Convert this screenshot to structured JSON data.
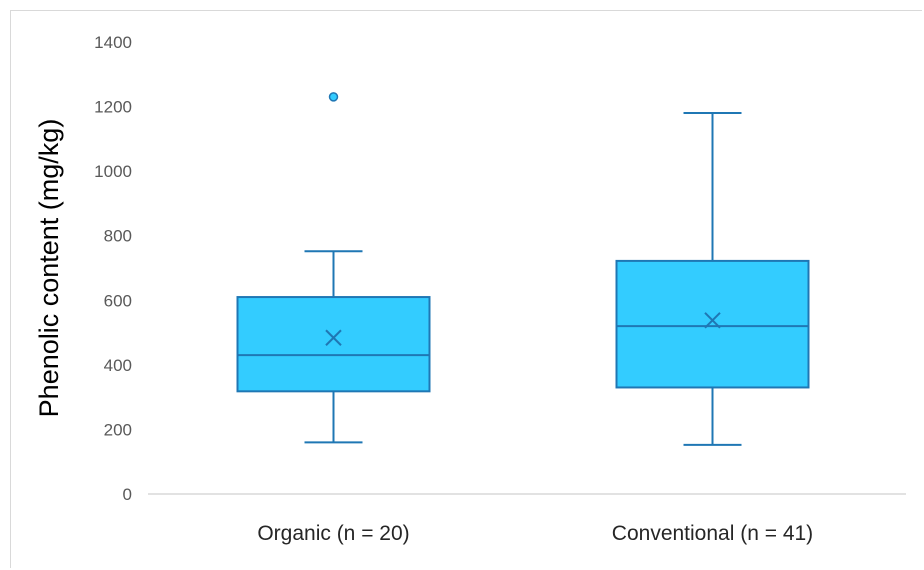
{
  "chart_data": {
    "type": "box",
    "title": "",
    "xlabel": "",
    "ylabel": "Phenolic content (mg/kg)",
    "ylim": [
      0,
      1400
    ],
    "yticks": [
      0,
      200,
      400,
      600,
      800,
      1000,
      1200,
      1400
    ],
    "grid": false,
    "legend": "none",
    "colors": {
      "box_fill": "#33CCFF",
      "box_stroke": "#1F77B4",
      "axis": "#d9d9d9"
    },
    "categories": [
      "Organic (n = 20)",
      "Conventional (n = 41)"
    ],
    "boxes": [
      {
        "category": "Organic (n = 20)",
        "min": 160,
        "q1": 318,
        "median": 430,
        "q3": 610,
        "max": 752,
        "mean": 484,
        "outliers": [
          1230
        ]
      },
      {
        "category": "Conventional (n = 41)",
        "min": 152,
        "q1": 330,
        "median": 520,
        "q3": 722,
        "max": 1180,
        "mean": 538,
        "outliers": []
      }
    ]
  }
}
